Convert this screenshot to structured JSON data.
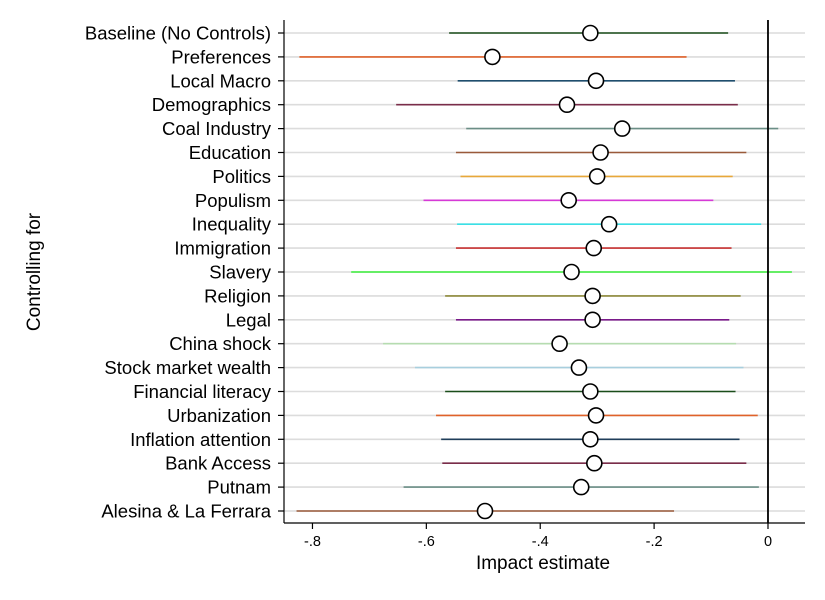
{
  "chart_data": {
    "type": "scatter",
    "title": "",
    "xlabel": "Impact estimate",
    "ylabel": "Controlling for",
    "xlim": [
      -0.85,
      0.065
    ],
    "xticks": [
      -0.8,
      -0.6,
      -0.4,
      -0.2,
      0
    ],
    "xtick_labels": [
      "-.8",
      "-.6",
      "-.4",
      "-.2",
      "0"
    ],
    "reference_line_x": 0,
    "grid": "horizontal",
    "marker": "hollow-circle",
    "series": [
      {
        "label": "Baseline (No Controls)",
        "estimate": -0.312,
        "ci": [
          -0.56,
          -0.07
        ],
        "color": "#1a4d1a"
      },
      {
        "label": "Preferences",
        "estimate": -0.484,
        "ci": [
          -0.823,
          -0.143
        ],
        "color": "#e0622a"
      },
      {
        "label": "Local Macro",
        "estimate": -0.302,
        "ci": [
          -0.545,
          -0.058
        ],
        "color": "#1f4e6e"
      },
      {
        "label": "Demographics",
        "estimate": -0.353,
        "ci": [
          -0.653,
          -0.053
        ],
        "color": "#7a2d4a"
      },
      {
        "label": "Coal Industry",
        "estimate": -0.256,
        "ci": [
          -0.53,
          0.018
        ],
        "color": "#6b8e86"
      },
      {
        "label": "Education",
        "estimate": -0.294,
        "ci": [
          -0.548,
          -0.038
        ],
        "color": "#9a5a3a"
      },
      {
        "label": "Politics",
        "estimate": -0.3,
        "ci": [
          -0.54,
          -0.062
        ],
        "color": "#e8a83a"
      },
      {
        "label": "Populism",
        "estimate": -0.35,
        "ci": [
          -0.605,
          -0.096
        ],
        "color": "#d63ad6"
      },
      {
        "label": "Inequality",
        "estimate": -0.279,
        "ci": [
          -0.546,
          -0.012
        ],
        "color": "#3ae0e6"
      },
      {
        "label": "Immigration",
        "estimate": -0.306,
        "ci": [
          -0.548,
          -0.064
        ],
        "color": "#c83232"
      },
      {
        "label": "Slavery",
        "estimate": -0.345,
        "ci": [
          -0.732,
          0.042
        ],
        "color": "#3aee3a"
      },
      {
        "label": "Religion",
        "estimate": -0.308,
        "ci": [
          -0.567,
          -0.048
        ],
        "color": "#8e8a3a"
      },
      {
        "label": "Legal",
        "estimate": -0.308,
        "ci": [
          -0.548,
          -0.068
        ],
        "color": "#7a1a8a"
      },
      {
        "label": "China shock",
        "estimate": -0.366,
        "ci": [
          -0.676,
          -0.056
        ],
        "color": "#b6dcb0"
      },
      {
        "label": "Stock market wealth",
        "estimate": -0.332,
        "ci": [
          -0.62,
          -0.043
        ],
        "color": "#a8cfde"
      },
      {
        "label": "Financial literacy",
        "estimate": -0.312,
        "ci": [
          -0.567,
          -0.057
        ],
        "color": "#1a4d1a"
      },
      {
        "label": "Urbanization",
        "estimate": -0.302,
        "ci": [
          -0.583,
          -0.018
        ],
        "color": "#e0622a"
      },
      {
        "label": "Inflation attention",
        "estimate": -0.312,
        "ci": [
          -0.574,
          -0.05
        ],
        "color": "#1f3e5a"
      },
      {
        "label": "Bank Access",
        "estimate": -0.305,
        "ci": [
          -0.572,
          -0.038
        ],
        "color": "#7a2d4a"
      },
      {
        "label": "Putnam",
        "estimate": -0.328,
        "ci": [
          -0.64,
          -0.016
        ],
        "color": "#6b8e86"
      },
      {
        "label": "Alesina & La Ferrara",
        "estimate": -0.497,
        "ci": [
          -0.828,
          -0.165
        ],
        "color": "#9a5a3a"
      }
    ]
  }
}
